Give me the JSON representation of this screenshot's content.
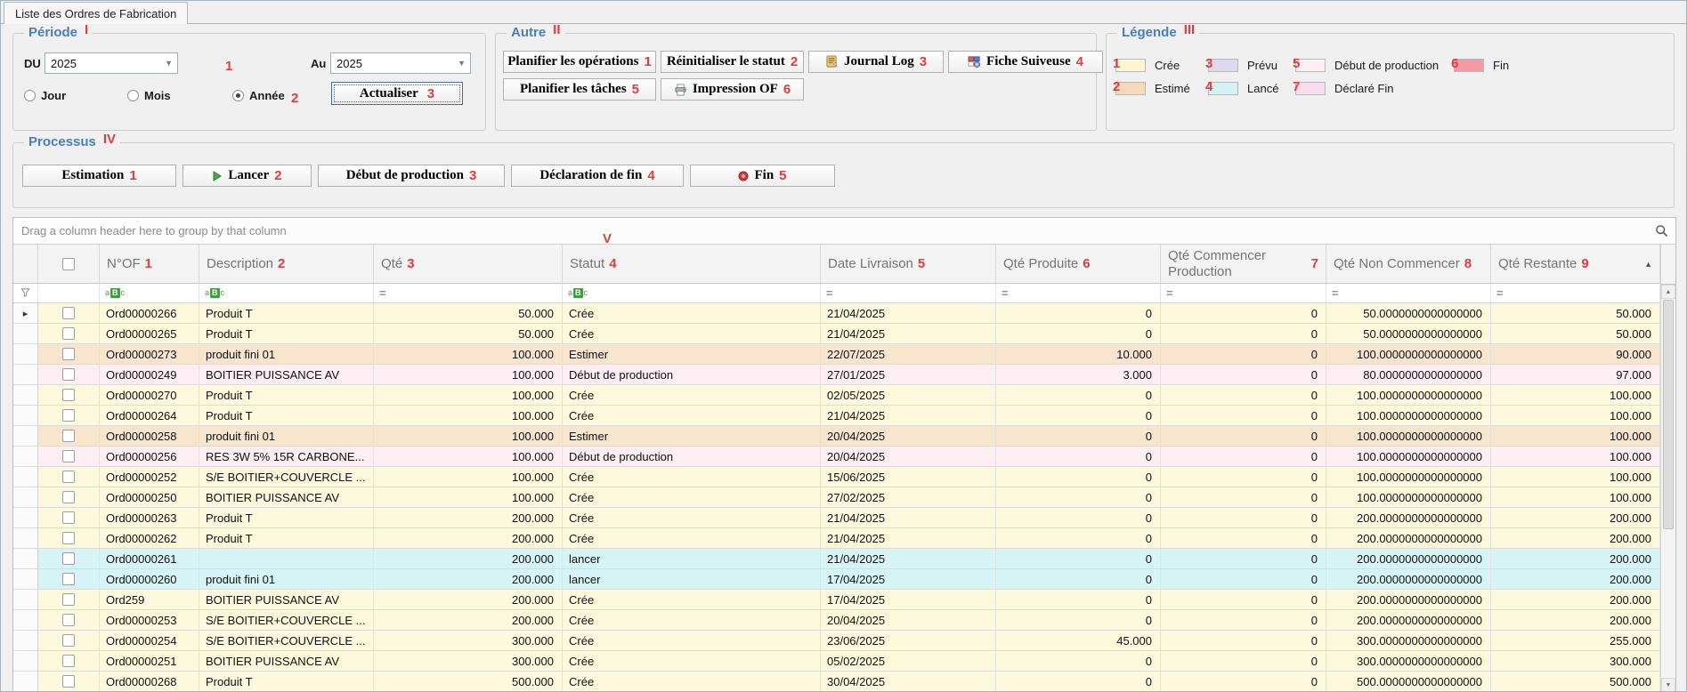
{
  "tab": {
    "title": "Liste des Ordres de Fabrication"
  },
  "accent_colors": {
    "annotation_red": "#e23b3b",
    "panel_title_blue": "#4a7ebc"
  },
  "periode": {
    "title": "Période",
    "annotation": "I",
    "du_label": "DU",
    "du_value": "2025",
    "au_label": "Au",
    "au_value": "2025",
    "num1": "1",
    "num2": "2",
    "num3": "3",
    "radios": [
      {
        "label": "Jour",
        "selected": false
      },
      {
        "label": "Mois",
        "selected": false
      },
      {
        "label": "Année",
        "selected": true
      }
    ],
    "actualiser_label": "Actualiser"
  },
  "autre": {
    "title": "Autre",
    "annotation": "II",
    "row1": [
      {
        "label": "Planifier les opérations",
        "num": "1",
        "icon": null
      },
      {
        "label": "Réinitialiser le statut",
        "num": "2",
        "icon": null
      },
      {
        "label": "Journal Log",
        "num": "3",
        "icon": "journal-log-icon"
      },
      {
        "label": "Fiche Suiveuse",
        "num": "4",
        "icon": "fiche-suiveuse-icon"
      }
    ],
    "row2": [
      {
        "label": "Planifier les tâches",
        "num": "5",
        "icon": null
      },
      {
        "label": "Impression OF",
        "num": "6",
        "icon": "printer-icon"
      }
    ]
  },
  "legende": {
    "title": "Légende",
    "annotation": "III",
    "rows": [
      [
        {
          "num": "1",
          "label": "Crée",
          "color": "#fdf6d0"
        },
        {
          "num": "3",
          "label": "Prévu",
          "color": "#dcd9f1"
        },
        {
          "num": "5",
          "label": "Début de production",
          "color": "#fdf0f5"
        },
        {
          "num": "6",
          "label": "Fin",
          "color": "#f89aa2"
        }
      ],
      [
        {
          "num": "2",
          "label": "Estimé",
          "color": "#f7d9b8"
        },
        {
          "num": "4",
          "label": "Lancé",
          "color": "#d2f2f4"
        },
        {
          "num": "7",
          "label": "Déclaré Fin",
          "color": "#f9dcee"
        }
      ]
    ]
  },
  "processus": {
    "title": "Processus",
    "annotation": "IV",
    "buttons": [
      {
        "label": "Estimation",
        "num": "1",
        "icon": null
      },
      {
        "label": "Lancer",
        "num": "2",
        "icon": "play-icon"
      },
      {
        "label": "Début de production",
        "num": "3",
        "icon": null
      },
      {
        "label": "Déclaration de fin",
        "num": "4",
        "icon": null
      },
      {
        "label": "Fin",
        "num": "5",
        "icon": "record-icon"
      }
    ]
  },
  "grid": {
    "group_panel_text": "Drag a column header here to group by that column",
    "annotation": "V",
    "columns": [
      {
        "label": "N°OF",
        "num": "1",
        "filter": "abc-filter-icon",
        "align": "left"
      },
      {
        "label": "Description",
        "num": "2",
        "filter": "abc-filter-icon",
        "align": "left"
      },
      {
        "label": "Qté",
        "num": "3",
        "filter": "equals-filter-icon",
        "align": "right"
      },
      {
        "label": "Statut",
        "num": "4",
        "filter": "abc-filter-icon",
        "align": "left"
      },
      {
        "label": "Date Livraison",
        "num": "5",
        "filter": "equals-filter-icon",
        "align": "left"
      },
      {
        "label": "Qté Produite",
        "num": "6",
        "filter": "equals-filter-icon",
        "align": "right"
      },
      {
        "label": "Qté Commencer Production",
        "num": "7",
        "filter": "equals-filter-icon",
        "align": "right"
      },
      {
        "label": "Qté Non Commencer",
        "num": "8",
        "filter": "equals-filter-icon",
        "align": "right"
      },
      {
        "label": "Qté Restante",
        "num": "9",
        "filter": "equals-filter-icon",
        "align": "right",
        "sorted": "asc"
      }
    ],
    "row_colors": {
      "cree": "#fdf9dc",
      "estimer": "#f7e5ce",
      "debut": "#fdeef4",
      "lancer": "#d6f4f6"
    },
    "rows": [
      {
        "status": "cree",
        "cells": [
          "Ord00000266",
          "Produit T",
          "50.000",
          "Crée",
          "21/04/2025",
          "0",
          "0",
          "50.0000000000000000",
          "50.000"
        ]
      },
      {
        "status": "cree",
        "cells": [
          "Ord00000265",
          "Produit T",
          "50.000",
          "Crée",
          "21/04/2025",
          "0",
          "0",
          "50.0000000000000000",
          "50.000"
        ]
      },
      {
        "status": "estimer",
        "cells": [
          "Ord00000273",
          "produit fini 01",
          "100.000",
          "Estimer",
          "22/07/2025",
          "10.000",
          "0",
          "100.0000000000000000",
          "90.000"
        ]
      },
      {
        "status": "debut",
        "cells": [
          "Ord00000249",
          "BOITIER PUISSANCE AV",
          "100.000",
          "Début de production",
          "27/01/2025",
          "3.000",
          "0",
          "80.0000000000000000",
          "97.000"
        ]
      },
      {
        "status": "cree",
        "cells": [
          "Ord00000270",
          "Produit T",
          "100.000",
          "Crée",
          "02/05/2025",
          "0",
          "0",
          "100.0000000000000000",
          "100.000"
        ]
      },
      {
        "status": "cree",
        "cells": [
          "Ord00000264",
          "Produit T",
          "100.000",
          "Crée",
          "21/04/2025",
          "0",
          "0",
          "100.0000000000000000",
          "100.000"
        ]
      },
      {
        "status": "estimer",
        "cells": [
          "Ord00000258",
          "produit fini 01",
          "100.000",
          "Estimer",
          "20/04/2025",
          "0",
          "0",
          "100.0000000000000000",
          "100.000"
        ]
      },
      {
        "status": "debut",
        "cells": [
          "Ord00000256",
          "RES 3W 5% 15R CARBONE...",
          "100.000",
          "Début de production",
          "20/04/2025",
          "0",
          "0",
          "100.0000000000000000",
          "100.000"
        ]
      },
      {
        "status": "cree",
        "cells": [
          "Ord00000252",
          "S/E BOITIER+COUVERCLE ...",
          "100.000",
          "Crée",
          "15/06/2025",
          "0",
          "0",
          "100.0000000000000000",
          "100.000"
        ]
      },
      {
        "status": "cree",
        "cells": [
          "Ord00000250",
          "BOITIER PUISSANCE AV",
          "100.000",
          "Crée",
          "27/02/2025",
          "0",
          "0",
          "100.0000000000000000",
          "100.000"
        ]
      },
      {
        "status": "cree",
        "cells": [
          "Ord00000263",
          "Produit T",
          "200.000",
          "Crée",
          "21/04/2025",
          "0",
          "0",
          "200.0000000000000000",
          "200.000"
        ]
      },
      {
        "status": "cree",
        "cells": [
          "Ord00000262",
          "Produit T",
          "200.000",
          "Crée",
          "21/04/2025",
          "0",
          "0",
          "200.0000000000000000",
          "200.000"
        ]
      },
      {
        "status": "lancer",
        "cells": [
          "Ord00000261",
          "",
          "200.000",
          "lancer",
          "21/04/2025",
          "0",
          "0",
          "200.0000000000000000",
          "200.000"
        ]
      },
      {
        "status": "lancer",
        "cells": [
          "Ord00000260",
          "produit fini 01",
          "200.000",
          "lancer",
          "17/04/2025",
          "0",
          "0",
          "200.0000000000000000",
          "200.000"
        ]
      },
      {
        "status": "cree",
        "cells": [
          "Ord259",
          "BOITIER PUISSANCE AV",
          "200.000",
          "Crée",
          "17/04/2025",
          "0",
          "0",
          "200.0000000000000000",
          "200.000"
        ]
      },
      {
        "status": "cree",
        "cells": [
          "Ord00000253",
          "S/E BOITIER+COUVERCLE ...",
          "200.000",
          "Crée",
          "20/04/2025",
          "0",
          "0",
          "200.0000000000000000",
          "200.000"
        ]
      },
      {
        "status": "cree",
        "cells": [
          "Ord00000254",
          "S/E BOITIER+COUVERCLE ...",
          "300.000",
          "Crée",
          "23/06/2025",
          "45.000",
          "0",
          "300.0000000000000000",
          "255.000"
        ]
      },
      {
        "status": "cree",
        "cells": [
          "Ord00000251",
          "BOITIER PUISSANCE AV",
          "300.000",
          "Crée",
          "05/02/2025",
          "0",
          "0",
          "300.0000000000000000",
          "300.000"
        ]
      },
      {
        "status": "cree",
        "cells": [
          "Ord00000268",
          "Produit T",
          "500.000",
          "Crée",
          "30/04/2025",
          "0",
          "0",
          "500.0000000000000000",
          "500.000"
        ]
      }
    ]
  }
}
